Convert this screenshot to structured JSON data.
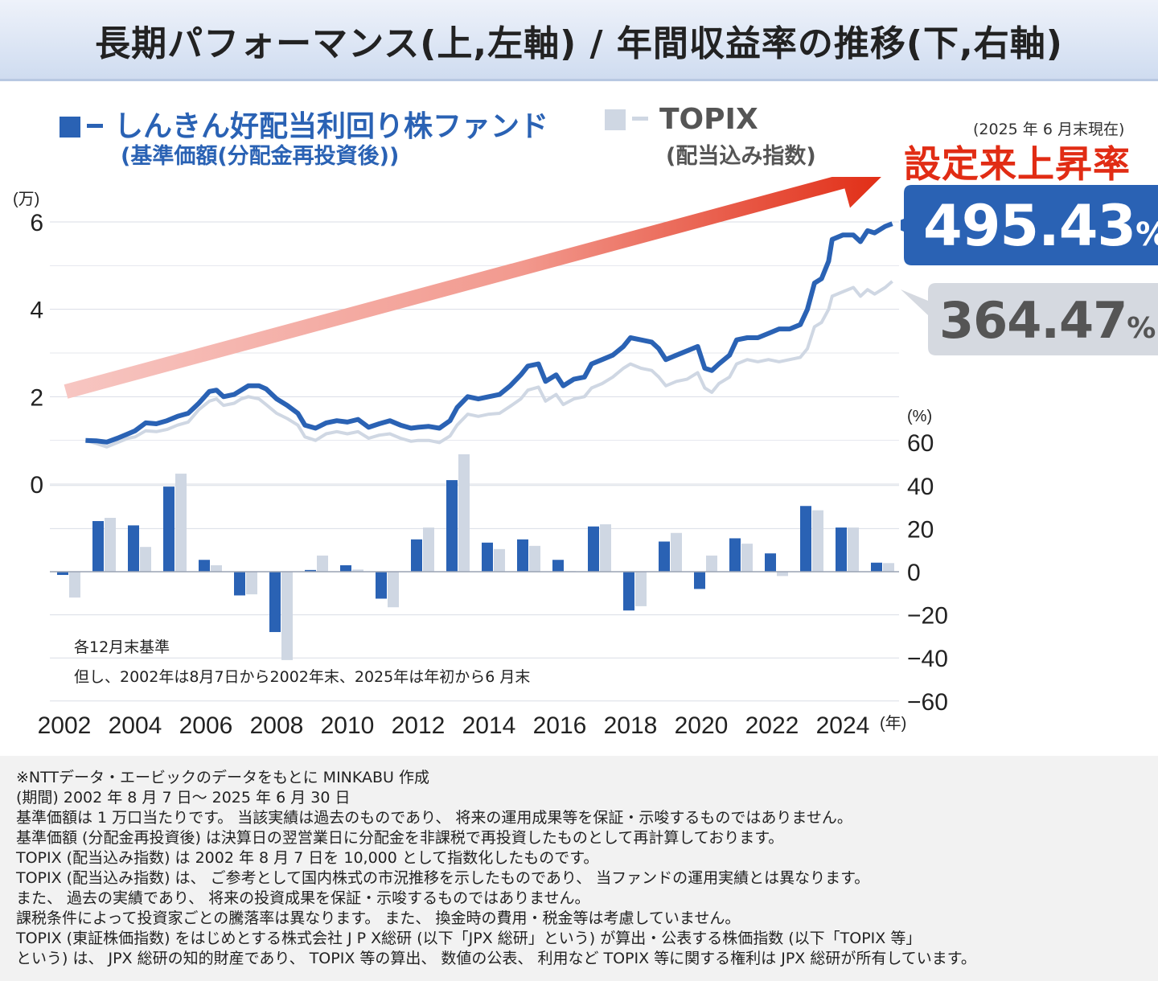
{
  "header": {
    "title": "長期パフォーマンス(上,左軸) / 年間収益率の推移(下,右軸)"
  },
  "legend": {
    "fund_name": "しんきん好配当利回り株ファンド",
    "fund_sub": "(基準価額(分配金再投資後))",
    "topix_name": "TOPIX",
    "topix_sub": "(配当込み指数)"
  },
  "as_of": "(2025 年 6 月末現在)",
  "since_inception_label": "設定来上昇率",
  "callouts": {
    "fund_value": "495.43",
    "topix_value": "364.47",
    "percent_sign": "%"
  },
  "chart_notes": {
    "basis": "各12月末基準",
    "exception": "但し、2002年は8月7日から2002年末、2025年は年初から6 月末"
  },
  "colors": {
    "fund": "#2a62b4",
    "topix": "#cfd7e3",
    "accent_red": "#e12c14",
    "callout_topix_bg": "#d5d9e0"
  },
  "chart_data": [
    {
      "type": "line",
      "y_unit_label": "(万)",
      "ylim": [
        0,
        6
      ],
      "y_ticks": [
        0,
        2,
        4,
        6
      ],
      "x_ticks": [
        "2002",
        "2004",
        "2006",
        "2008",
        "2010",
        "2012",
        "2014",
        "2016",
        "2018",
        "2020",
        "2022",
        "2024"
      ],
      "x_unit_label": "(年)",
      "grid": true,
      "series": [
        {
          "name": "しんきん好配当利回り株ファンド",
          "points": [
            [
              2002.6,
              1.0
            ],
            [
              2002.9,
              0.99
            ],
            [
              2003.2,
              0.96
            ],
            [
              2003.5,
              1.05
            ],
            [
              2003.8,
              1.15
            ],
            [
              2004.0,
              1.22
            ],
            [
              2004.3,
              1.4
            ],
            [
              2004.6,
              1.38
            ],
            [
              2004.9,
              1.45
            ],
            [
              2005.2,
              1.55
            ],
            [
              2005.5,
              1.62
            ],
            [
              2005.8,
              1.85
            ],
            [
              2006.1,
              2.12
            ],
            [
              2006.3,
              2.15
            ],
            [
              2006.5,
              2.0
            ],
            [
              2006.8,
              2.05
            ],
            [
              2007.0,
              2.15
            ],
            [
              2007.2,
              2.25
            ],
            [
              2007.5,
              2.25
            ],
            [
              2007.7,
              2.18
            ],
            [
              2008.0,
              1.95
            ],
            [
              2008.3,
              1.8
            ],
            [
              2008.6,
              1.62
            ],
            [
              2008.8,
              1.35
            ],
            [
              2009.1,
              1.28
            ],
            [
              2009.4,
              1.4
            ],
            [
              2009.7,
              1.45
            ],
            [
              2010.0,
              1.42
            ],
            [
              2010.3,
              1.48
            ],
            [
              2010.6,
              1.3
            ],
            [
              2010.9,
              1.38
            ],
            [
              2011.2,
              1.45
            ],
            [
              2011.5,
              1.35
            ],
            [
              2011.8,
              1.28
            ],
            [
              2012.0,
              1.3
            ],
            [
              2012.3,
              1.32
            ],
            [
              2012.6,
              1.28
            ],
            [
              2012.9,
              1.45
            ],
            [
              2013.1,
              1.75
            ],
            [
              2013.4,
              2.0
            ],
            [
              2013.7,
              1.95
            ],
            [
              2014.0,
              2.0
            ],
            [
              2014.3,
              2.05
            ],
            [
              2014.6,
              2.25
            ],
            [
              2014.9,
              2.5
            ],
            [
              2015.1,
              2.7
            ],
            [
              2015.4,
              2.75
            ],
            [
              2015.6,
              2.35
            ],
            [
              2015.9,
              2.5
            ],
            [
              2016.1,
              2.25
            ],
            [
              2016.4,
              2.4
            ],
            [
              2016.7,
              2.45
            ],
            [
              2016.9,
              2.75
            ],
            [
              2017.2,
              2.85
            ],
            [
              2017.5,
              2.95
            ],
            [
              2017.8,
              3.15
            ],
            [
              2018.0,
              3.35
            ],
            [
              2018.3,
              3.3
            ],
            [
              2018.6,
              3.25
            ],
            [
              2018.8,
              3.1
            ],
            [
              2019.0,
              2.85
            ],
            [
              2019.3,
              2.95
            ],
            [
              2019.6,
              3.05
            ],
            [
              2019.9,
              3.15
            ],
            [
              2020.1,
              2.65
            ],
            [
              2020.3,
              2.6
            ],
            [
              2020.5,
              2.75
            ],
            [
              2020.8,
              2.95
            ],
            [
              2021.0,
              3.3
            ],
            [
              2021.3,
              3.35
            ],
            [
              2021.6,
              3.35
            ],
            [
              2021.9,
              3.45
            ],
            [
              2022.2,
              3.55
            ],
            [
              2022.5,
              3.55
            ],
            [
              2022.8,
              3.65
            ],
            [
              2023.0,
              4.0
            ],
            [
              2023.2,
              4.6
            ],
            [
              2023.4,
              4.7
            ],
            [
              2023.6,
              5.1
            ],
            [
              2023.7,
              5.6
            ],
            [
              2024.0,
              5.7
            ],
            [
              2024.3,
              5.7
            ],
            [
              2024.5,
              5.55
            ],
            [
              2024.7,
              5.8
            ],
            [
              2024.9,
              5.75
            ],
            [
              2025.2,
              5.9
            ],
            [
              2025.4,
              5.96
            ]
          ]
        },
        {
          "name": "TOPIX",
          "points": [
            [
              2002.6,
              1.0
            ],
            [
              2002.9,
              0.93
            ],
            [
              2003.2,
              0.85
            ],
            [
              2003.5,
              0.95
            ],
            [
              2003.8,
              1.05
            ],
            [
              2004.0,
              1.08
            ],
            [
              2004.3,
              1.22
            ],
            [
              2004.6,
              1.2
            ],
            [
              2004.9,
              1.25
            ],
            [
              2005.2,
              1.35
            ],
            [
              2005.5,
              1.42
            ],
            [
              2005.8,
              1.7
            ],
            [
              2006.1,
              1.9
            ],
            [
              2006.3,
              1.95
            ],
            [
              2006.5,
              1.8
            ],
            [
              2006.8,
              1.85
            ],
            [
              2007.0,
              1.95
            ],
            [
              2007.2,
              2.0
            ],
            [
              2007.5,
              1.95
            ],
            [
              2007.7,
              1.82
            ],
            [
              2008.0,
              1.62
            ],
            [
              2008.3,
              1.5
            ],
            [
              2008.6,
              1.35
            ],
            [
              2008.8,
              1.08
            ],
            [
              2009.1,
              1.0
            ],
            [
              2009.4,
              1.15
            ],
            [
              2009.7,
              1.2
            ],
            [
              2010.0,
              1.15
            ],
            [
              2010.3,
              1.2
            ],
            [
              2010.6,
              1.05
            ],
            [
              2010.9,
              1.12
            ],
            [
              2011.2,
              1.15
            ],
            [
              2011.5,
              1.05
            ],
            [
              2011.8,
              0.98
            ],
            [
              2012.0,
              1.0
            ],
            [
              2012.3,
              1.0
            ],
            [
              2012.6,
              0.95
            ],
            [
              2012.9,
              1.1
            ],
            [
              2013.1,
              1.35
            ],
            [
              2013.4,
              1.6
            ],
            [
              2013.7,
              1.55
            ],
            [
              2014.0,
              1.6
            ],
            [
              2014.3,
              1.62
            ],
            [
              2014.6,
              1.78
            ],
            [
              2014.9,
              1.95
            ],
            [
              2015.1,
              2.15
            ],
            [
              2015.4,
              2.22
            ],
            [
              2015.6,
              1.9
            ],
            [
              2015.9,
              2.05
            ],
            [
              2016.1,
              1.82
            ],
            [
              2016.4,
              1.95
            ],
            [
              2016.7,
              2.0
            ],
            [
              2016.9,
              2.2
            ],
            [
              2017.2,
              2.3
            ],
            [
              2017.5,
              2.45
            ],
            [
              2017.8,
              2.65
            ],
            [
              2018.0,
              2.75
            ],
            [
              2018.3,
              2.65
            ],
            [
              2018.6,
              2.6
            ],
            [
              2018.8,
              2.45
            ],
            [
              2019.0,
              2.25
            ],
            [
              2019.3,
              2.35
            ],
            [
              2019.6,
              2.4
            ],
            [
              2019.9,
              2.55
            ],
            [
              2020.1,
              2.2
            ],
            [
              2020.3,
              2.1
            ],
            [
              2020.5,
              2.3
            ],
            [
              2020.8,
              2.45
            ],
            [
              2021.0,
              2.75
            ],
            [
              2021.3,
              2.85
            ],
            [
              2021.6,
              2.8
            ],
            [
              2021.9,
              2.85
            ],
            [
              2022.2,
              2.8
            ],
            [
              2022.5,
              2.85
            ],
            [
              2022.8,
              2.9
            ],
            [
              2023.0,
              3.1
            ],
            [
              2023.2,
              3.6
            ],
            [
              2023.4,
              3.7
            ],
            [
              2023.6,
              4.0
            ],
            [
              2023.7,
              4.3
            ],
            [
              2024.0,
              4.4
            ],
            [
              2024.3,
              4.5
            ],
            [
              2024.5,
              4.3
            ],
            [
              2024.7,
              4.45
            ],
            [
              2024.9,
              4.35
            ],
            [
              2025.2,
              4.5
            ],
            [
              2025.4,
              4.64
            ]
          ]
        }
      ]
    },
    {
      "type": "bar",
      "y_unit_label": "(%)",
      "ylim": [
        -60,
        60
      ],
      "y_ticks": [
        -60,
        -40,
        -20,
        0,
        20,
        40,
        60
      ],
      "categories": [
        "2002",
        "2003",
        "2004",
        "2005",
        "2006",
        "2007",
        "2008",
        "2009",
        "2010",
        "2011",
        "2012",
        "2013",
        "2014",
        "2015",
        "2016",
        "2017",
        "2018",
        "2019",
        "2020",
        "2021",
        "2022",
        "2023",
        "2024",
        "2025"
      ],
      "series": [
        {
          "name": "しんきん好配当利回り株ファンド",
          "values": [
            -1.5,
            23.5,
            21.5,
            39.5,
            5.5,
            -11,
            -28,
            0.8,
            3.0,
            -12.5,
            15,
            42.5,
            13.5,
            15,
            5.5,
            21,
            -18,
            14,
            -8,
            15.5,
            8.5,
            30.5,
            20.5,
            4.2
          ]
        },
        {
          "name": "TOPIX",
          "values": [
            -12,
            25,
            11.5,
            45.5,
            3.0,
            -10.5,
            -41,
            7.5,
            1.0,
            -16.5,
            20.5,
            54.5,
            10.5,
            12,
            0.3,
            22,
            -16,
            18,
            7.5,
            13,
            -2,
            28.5,
            20.5,
            4.0
          ]
        }
      ]
    }
  ],
  "notes": [
    "※NTTデータ・エービックのデータをもとに MINKABU 作成",
    "(期間) 2002 年 8 月 7 日〜 2025 年 6 月 30 日",
    "基準価額は 1 万口当たりです。 当該実績は過去のものであり、 将来の運用成果等を保証・示唆するものではありません。",
    "基準価額 (分配金再投資後) は決算日の翌営業日に分配金を非課税で再投資したものとして再計算しております。",
    "TOPIX (配当込み指数) は 2002 年 8 月 7 日を 10,000 として指数化したものです。",
    "TOPIX (配当込み指数) は、 ご参考として国内株式の市況推移を示したものであり、 当ファンドの運用実績とは異なります。",
    "また、 過去の実績であり、 将来の投資成果を保証・示唆するものではありません。",
    "課税条件によって投資家ごとの騰落率は異なります。 また、 換金時の費用・税金等は考慮していません。",
    "TOPIX (東証株価指数) をはじめとする株式会社 J P X総研 (以下「JPX 総研」という) が算出・公表する株価指数 (以下「TOPIX 等」",
    "という) は、 JPX 総研の知的財産であり、 TOPIX 等の算出、 数値の公表、 利用など TOPIX 等に関する権利は JPX 総研が所有しています。"
  ]
}
